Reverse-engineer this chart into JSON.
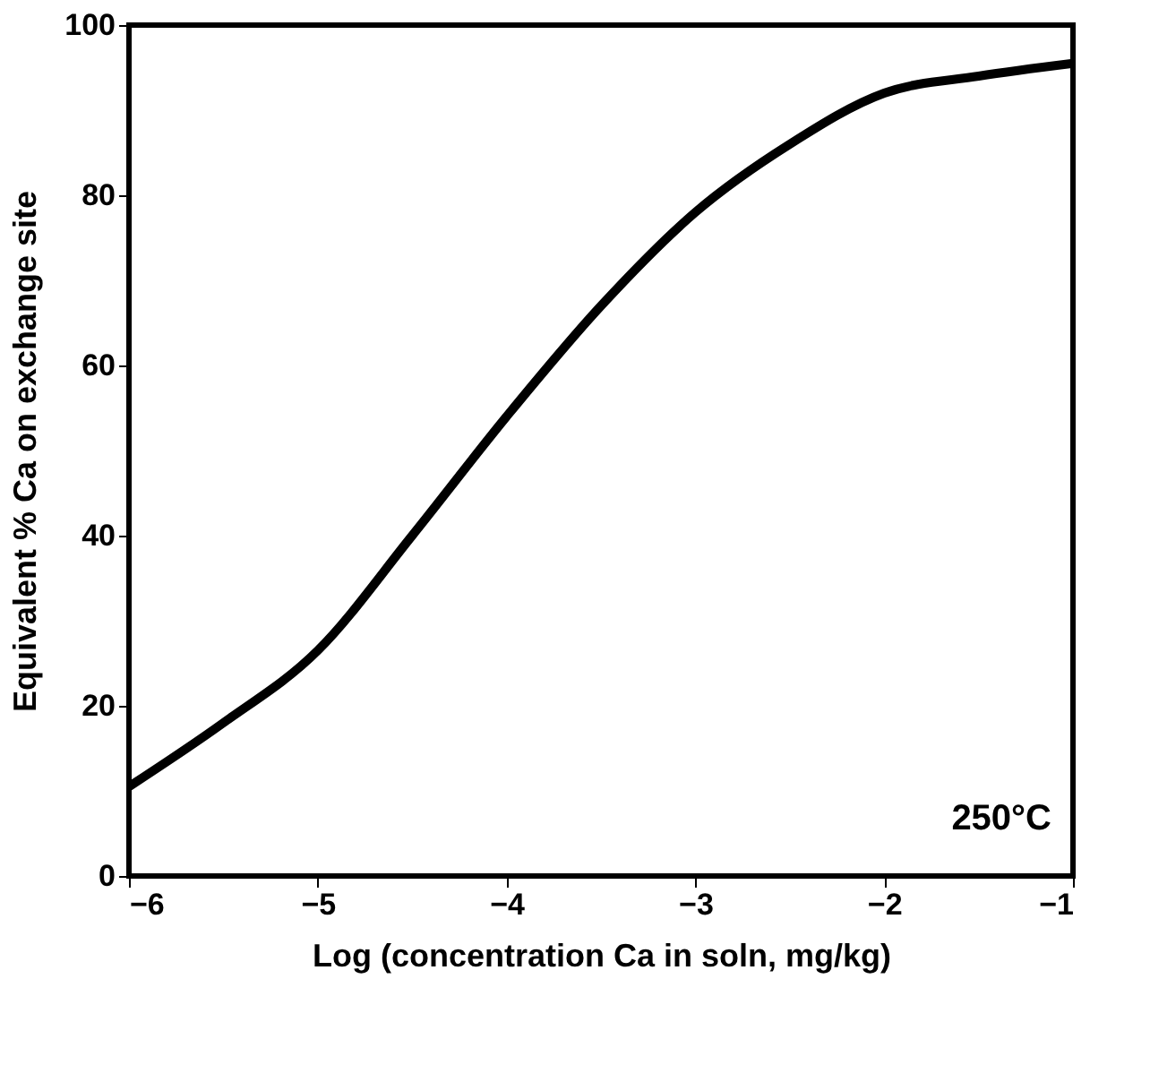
{
  "chart_data": {
    "type": "line",
    "xlabel": "Log (concentration Ca in soln, mg/kg)",
    "ylabel": "Equivalent % Ca on exchange site",
    "x": [
      -6,
      -5.5,
      -5,
      -4.5,
      -4,
      -3.5,
      -3,
      -2.5,
      -2,
      -1.5,
      -1
    ],
    "series": [
      {
        "color": "#000000",
        "values": [
          10.5,
          18,
          26.5,
          40,
          54,
          67,
          78,
          86,
          92,
          94,
          95.5
        ]
      }
    ],
    "xlim": [
      -6,
      -1
    ],
    "xticks": [
      {
        "value": -6,
        "label": "−6"
      },
      {
        "value": -5,
        "label": "−5"
      },
      {
        "value": -4,
        "label": "−4"
      },
      {
        "value": -3,
        "label": "−3"
      },
      {
        "value": -2,
        "label": "−2"
      },
      {
        "value": -1,
        "label": "−1"
      }
    ],
    "ylim": [
      0,
      100
    ],
    "yticks": [
      0,
      20,
      40,
      60,
      80,
      100
    ],
    "grid": false,
    "marker": "none",
    "line_style": "solid",
    "annotations": [
      "250°C"
    ]
  }
}
